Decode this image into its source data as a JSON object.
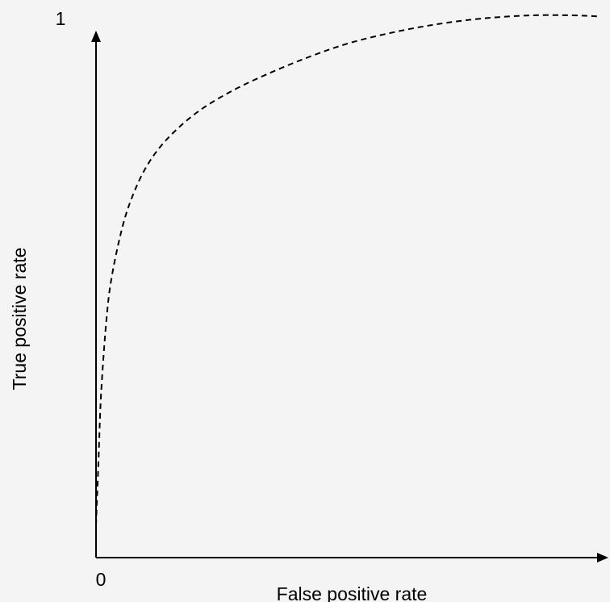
{
  "chart_data": {
    "type": "line",
    "title": "",
    "xlabel": "False positive rate",
    "ylabel": "True positive rate",
    "xlim": [
      0,
      1
    ],
    "ylim": [
      0,
      1
    ],
    "y_max_tick": "1",
    "origin_tick": "0",
    "grid": false,
    "legend": "none",
    "series": [
      {
        "line_style": "dashed",
        "x": [
          0.0,
          0.005,
          0.01,
          0.02,
          0.03,
          0.05,
          0.07,
          0.1,
          0.14,
          0.2,
          0.27,
          0.35,
          0.43,
          0.51,
          0.6,
          0.69,
          0.78,
          0.87,
          0.95,
          1.0
        ],
        "y": [
          0.06,
          0.18,
          0.3,
          0.43,
          0.51,
          0.6,
          0.66,
          0.72,
          0.77,
          0.82,
          0.86,
          0.895,
          0.925,
          0.95,
          0.97,
          0.985,
          0.995,
          1.0,
          1.0,
          0.998
        ]
      }
    ]
  },
  "colors": {
    "background": "#f4f4f4",
    "axis": "#000000",
    "curve": "#000000"
  }
}
